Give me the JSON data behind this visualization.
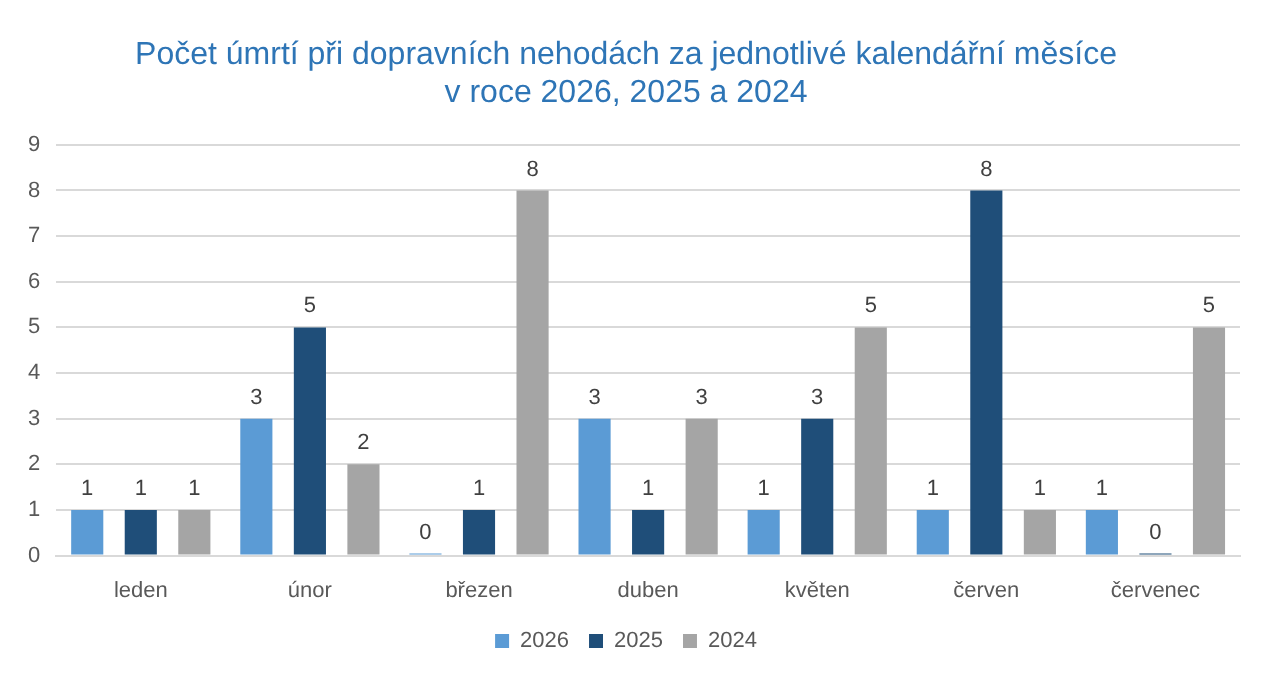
{
  "chart_data": {
    "type": "bar",
    "title": "Počet úmrtí při dopravních nehodách za jednotlivé kalendářní měsíce\nv roce 2026, 2025 a 2024",
    "categories": [
      "leden",
      "únor",
      "březen",
      "duben",
      "květen",
      "červen",
      "červenec"
    ],
    "series": [
      {
        "name": "2026",
        "color": "#5b9bd5",
        "values": [
          1,
          3,
          0,
          3,
          1,
          1,
          1
        ]
      },
      {
        "name": "2025",
        "color": "#1f4e79",
        "values": [
          1,
          5,
          1,
          1,
          3,
          8,
          0
        ]
      },
      {
        "name": "2024",
        "color": "#a5a5a5",
        "values": [
          1,
          2,
          8,
          3,
          5,
          1,
          5
        ]
      }
    ],
    "ylim": [
      0,
      9
    ],
    "yticks": [
      0,
      1,
      2,
      3,
      4,
      5,
      6,
      7,
      8,
      9
    ],
    "grid": "y",
    "legend": "bottom",
    "data_labels": true
  }
}
